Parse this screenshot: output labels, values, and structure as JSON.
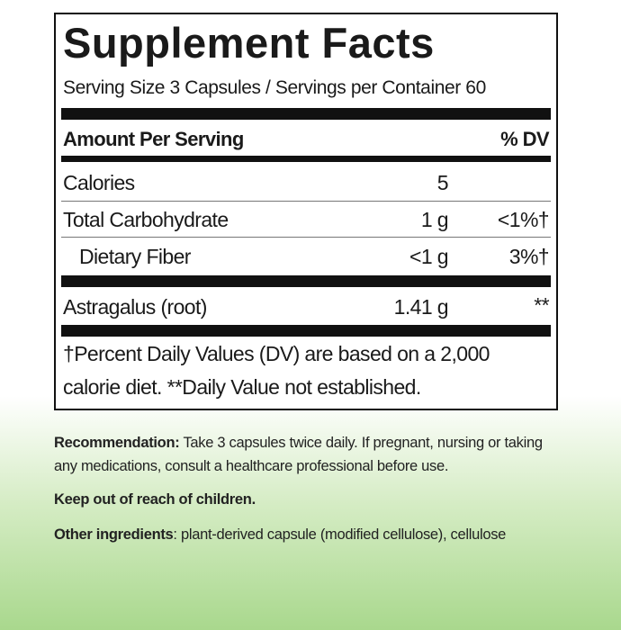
{
  "title": "Supplement Facts",
  "serving": "Serving Size 3 Capsules / Servings per Container 60",
  "header": {
    "amount": "Amount Per Serving",
    "dv": "% DV"
  },
  "rows": [
    {
      "name": "Calories",
      "amount": "5"
    },
    {
      "name": "Total Carbohydrate",
      "amount": "1 g",
      "dv": "<1%†"
    },
    {
      "name": "Dietary Fiber",
      "amount": "<1 g",
      "dv": "3%†"
    },
    {
      "name": "Astragalus (root)",
      "amount": "1.41 g",
      "dv": "**"
    }
  ],
  "footnote": [
    "†Percent Daily Values (DV) are based on a 2,000",
    "calorie diet. **Daily Value not established."
  ],
  "recommendation": {
    "label": "Recommendation:",
    "text": "Take 3 capsules twice daily. If pregnant, nursing or taking any medications, consult a healthcare professional before use."
  },
  "warning": "Keep out of reach of children.",
  "ingredients": {
    "label": "Other ingredients",
    "text": ": plant-derived capsule (modified cellulose), cellulose"
  }
}
